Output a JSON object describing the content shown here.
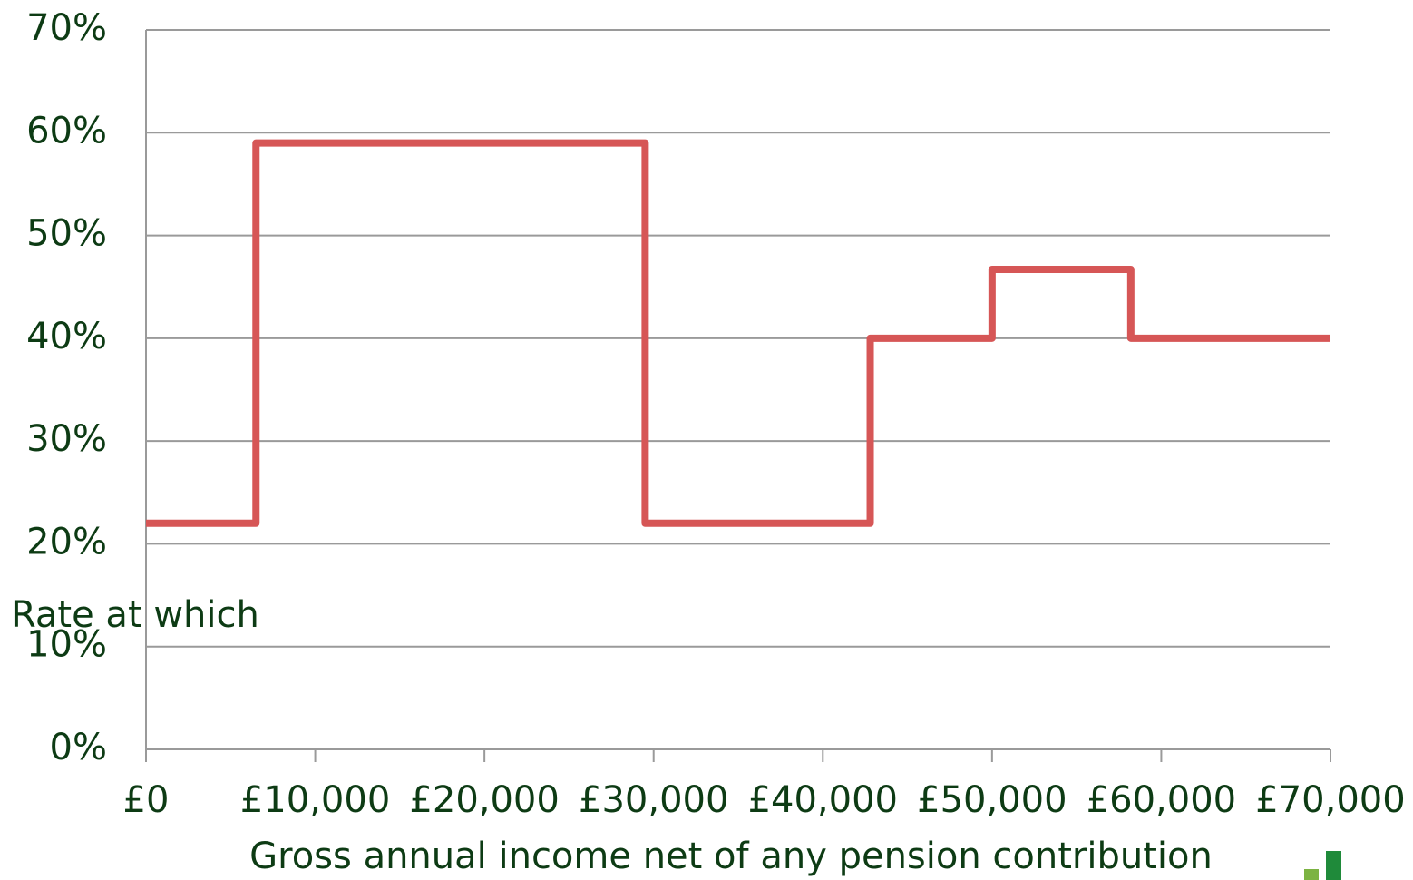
{
  "chart_data": {
    "type": "line",
    "step": "post",
    "x": [
      0,
      6500,
      29500,
      42800,
      50000,
      58200,
      70000
    ],
    "series": [
      {
        "color": "#d65656",
        "values": [
          22,
          59,
          22,
          40,
          46.7,
          40,
          40
        ]
      }
    ],
    "xlim": [
      0,
      70000
    ],
    "xticks": [
      {
        "value": 0,
        "label": "£0"
      },
      {
        "value": 10000,
        "label": "£10,000"
      },
      {
        "value": 20000,
        "label": "£20,000"
      },
      {
        "value": 30000,
        "label": "£30,000"
      },
      {
        "value": 40000,
        "label": "£40,000"
      },
      {
        "value": 50000,
        "label": "£50,000"
      },
      {
        "value": 60000,
        "label": "£60,000"
      },
      {
        "value": 70000,
        "label": "£70,000"
      }
    ],
    "ylim": [
      0,
      70
    ],
    "yticks": [
      {
        "value": 0,
        "label": "0%"
      },
      {
        "value": 10,
        "label": "10%"
      },
      {
        "value": 20,
        "label": "20%"
      },
      {
        "value": 30,
        "label": "30%"
      },
      {
        "value": 40,
        "label": "40%"
      },
      {
        "value": 50,
        "label": "50%"
      },
      {
        "value": 60,
        "label": "60%"
      },
      {
        "value": 70,
        "label": "70%"
      }
    ],
    "ylabel": "Rate at which",
    "xlabel": "Gross annual income net of any pension contribution",
    "grid": true
  }
}
